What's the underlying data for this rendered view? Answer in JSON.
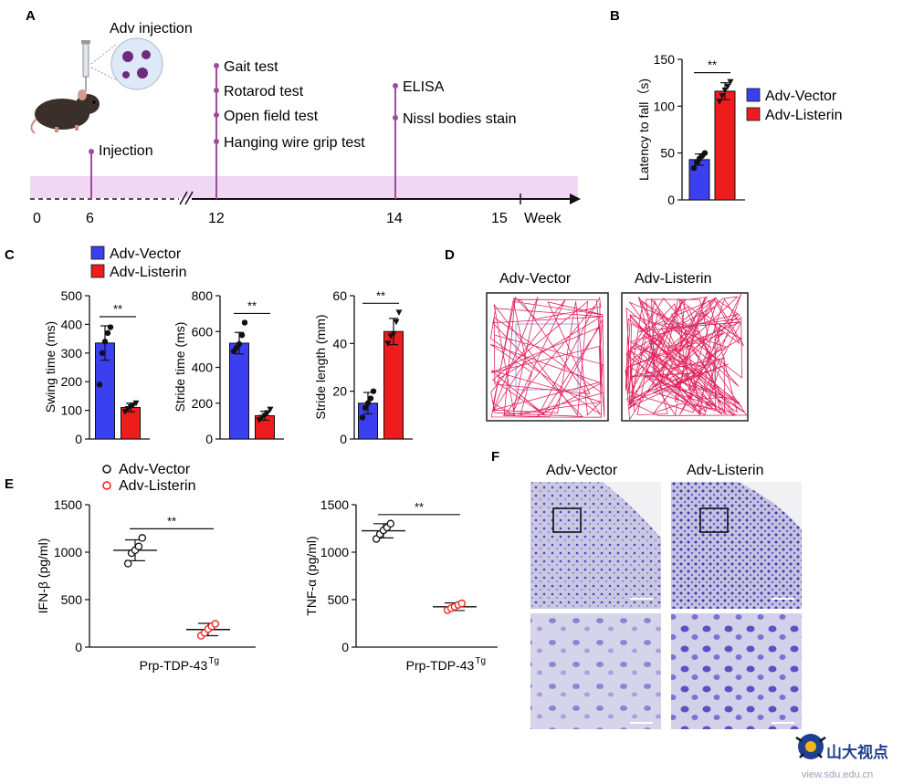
{
  "colors": {
    "vector": "#3a3ff0",
    "listerin": "#ee1c1c",
    "timeline_band": "#f0d8f3",
    "timeline_stem": "#9a4f9e",
    "nissl": "#5a55c2",
    "axis": "#111111"
  },
  "panels": {
    "A": "A",
    "B": "B",
    "C": "C",
    "D": "D",
    "E": "E",
    "F": "F"
  },
  "timeline": {
    "injection_title": "Adv injection",
    "events": [
      {
        "week": 6,
        "labels": [
          "Injection"
        ]
      },
      {
        "week": 12,
        "labels": [
          "Gait test",
          "Rotarod test",
          "Open field test",
          "Hanging wire grip test"
        ]
      },
      {
        "week": 14,
        "labels": [
          "ELISA",
          "Nissl bodies stain"
        ]
      }
    ],
    "ticks": [
      "0",
      "6",
      "12",
      "14",
      "15"
    ],
    "unit": "Week"
  },
  "legend": {
    "vector": "Adv-Vector",
    "listerin": "Adv-Listerin"
  },
  "significance": "**",
  "chart_data": [
    {
      "id": "B",
      "type": "bar",
      "categories": [
        "Adv-Vector",
        "Adv-Listerin"
      ],
      "values": [
        43,
        116
      ],
      "errors": [
        6,
        9
      ],
      "points": [
        [
          34,
          40,
          44,
          47,
          50
        ],
        [
          105,
          111,
          117,
          121,
          126
        ]
      ],
      "ylabel": "Latency to fall（s)",
      "ylim": [
        0,
        150
      ],
      "yticks": [
        0,
        50,
        100,
        150
      ]
    },
    {
      "id": "C1",
      "type": "bar",
      "categories": [
        "Adv-Vector",
        "Adv-Listerin"
      ],
      "values": [
        335,
        110
      ],
      "errors": [
        60,
        15
      ],
      "points": [
        [
          190,
          300,
          340,
          370,
          390
        ],
        [
          95,
          105,
          112,
          118,
          125
        ]
      ],
      "ylabel": "Swing time (ms)",
      "ylim": [
        0,
        500
      ],
      "yticks": [
        0,
        100,
        200,
        300,
        400,
        500
      ]
    },
    {
      "id": "C2",
      "type": "bar",
      "categories": [
        "Adv-Vector",
        "Adv-Listerin"
      ],
      "values": [
        535,
        130
      ],
      "errors": [
        60,
        25
      ],
      "points": [
        [
          490,
          510,
          530,
          580,
          650
        ],
        [
          105,
          120,
          130,
          145,
          165
        ]
      ],
      "ylabel": "Stride time (ms)",
      "ylim": [
        0,
        800
      ],
      "yticks": [
        0,
        200,
        400,
        600,
        800
      ]
    },
    {
      "id": "C3",
      "type": "bar",
      "categories": [
        "Adv-Vector",
        "Adv-Listerin"
      ],
      "values": [
        15,
        45
      ],
      "errors": [
        4.5,
        5.5
      ],
      "points": [
        [
          9,
          13,
          15,
          17,
          20
        ],
        [
          40,
          43,
          44,
          49,
          53
        ]
      ],
      "ylabel": "Stride length (mm)",
      "ylim": [
        0,
        60
      ],
      "yticks": [
        0,
        20,
        40,
        60
      ]
    },
    {
      "id": "E1",
      "type": "scatter",
      "categories": [
        "Adv-Vector",
        "Adv-Listerin"
      ],
      "means": [
        1020,
        185
      ],
      "errors": [
        110,
        65
      ],
      "points": [
        [
          880,
          990,
          1020,
          1060,
          1150
        ],
        [
          120,
          150,
          190,
          220,
          245
        ]
      ],
      "ylabel": "IFN-β (pg/ml)",
      "xlabel": "Prp-TDP-43",
      "xlabel_sup": "Tg",
      "ylim": [
        0,
        1500
      ],
      "yticks": [
        0,
        500,
        1000,
        1500
      ]
    },
    {
      "id": "E2",
      "type": "scatter",
      "categories": [
        "Adv-Vector",
        "Adv-Listerin"
      ],
      "means": [
        1225,
        425
      ],
      "errors": [
        75,
        40
      ],
      "points": [
        [
          1140,
          1190,
          1230,
          1260,
          1300
        ],
        [
          390,
          410,
          425,
          445,
          460
        ]
      ],
      "ylabel": "TNF-α (pg/ml)",
      "xlabel": "Prp-TDP-43",
      "xlabel_sup": "Tg",
      "ylim": [
        0,
        1500
      ],
      "yticks": [
        0,
        500,
        1000,
        1500
      ]
    }
  ],
  "open_field": {
    "vector_title": "Adv-Vector",
    "listerin_title": "Adv-Listerin"
  },
  "nissl": {
    "vector_title": "Adv-Vector",
    "listerin_title": "Adv-Listerin"
  },
  "watermark": {
    "text": "山大视点",
    "url": "view.sdu.edu.cn"
  }
}
